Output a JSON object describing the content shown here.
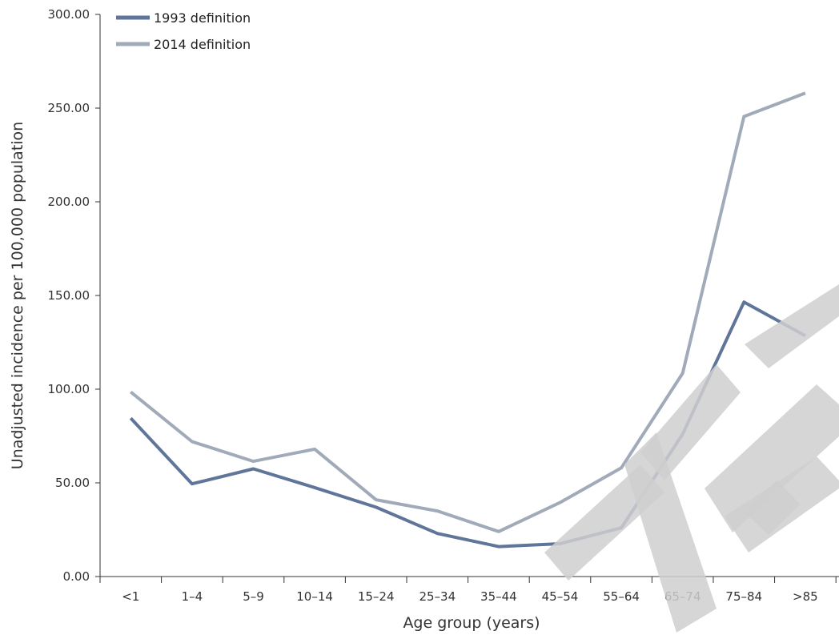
{
  "chart_data": {
    "type": "line",
    "title": "",
    "xlabel": "Age group (years)",
    "ylabel": "Unadjusted incidence per 100,000 population",
    "categories": [
      "<1",
      "1–4",
      "5–9",
      "10–14",
      "15–24",
      "25–34",
      "35–44",
      "45–54",
      "55–64",
      "65–74",
      "75–84",
      ">85"
    ],
    "yticks": [
      "0.00",
      "50.00",
      "100.00",
      "150.00",
      "200.00",
      "250.00",
      "300.00"
    ],
    "ylim": [
      0,
      300
    ],
    "grid": false,
    "legend_position": "top-left",
    "series": [
      {
        "name": "1993 definition",
        "color": "#5f7599",
        "values": [
          84.5,
          49.5,
          57.5,
          47.5,
          37.0,
          23.0,
          16.0,
          17.5,
          26.0,
          76.0,
          146.5,
          128.5
        ]
      },
      {
        "name": "2014 definition",
        "color": "#a1aab8",
        "values": [
          98.5,
          72.0,
          61.5,
          68.0,
          41.0,
          35.0,
          24.0,
          39.5,
          58.0,
          108.5,
          245.5,
          258.0
        ]
      }
    ],
    "watermark_color": "#cfcfcf"
  }
}
